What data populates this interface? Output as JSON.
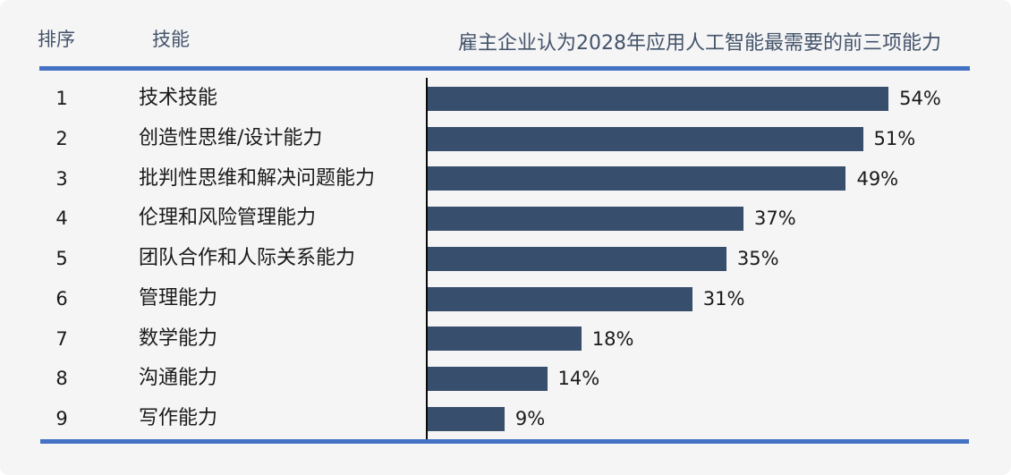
{
  "header": {
    "rank_label": "排序",
    "skill_label": "技能",
    "chart_title": "雇主企业认为2028年应用人工智能最需要的前三项能力"
  },
  "table": {
    "columns": [
      "排序",
      "技能"
    ],
    "rows": [
      {
        "rank": "1",
        "skill": "技术技能",
        "percent_label": "54%"
      },
      {
        "rank": "2",
        "skill": "创造性思维/设计能力",
        "percent_label": "51%"
      },
      {
        "rank": "3",
        "skill": "批判性思维和解决问题能力",
        "percent_label": "49%"
      },
      {
        "rank": "4",
        "skill": "伦理和风险管理能力",
        "percent_label": "37%"
      },
      {
        "rank": "5",
        "skill": "团队合作和人际关系能力",
        "percent_label": "35%"
      },
      {
        "rank": "6",
        "skill": "管理能力",
        "percent_label": "31%"
      },
      {
        "rank": "7",
        "skill": "数学能力",
        "percent_label": "18%"
      },
      {
        "rank": "8",
        "skill": "沟通能力",
        "percent_label": "14%"
      },
      {
        "rank": "9",
        "skill": "写作能力",
        "percent_label": "9%"
      }
    ]
  },
  "chart_data": {
    "type": "bar",
    "orientation": "horizontal",
    "title": "雇主企业认为2028年应用人工智能最需要的前三项能力",
    "categories": [
      "技术技能",
      "创造性思维/设计能力",
      "批判性思维和解决问题能力",
      "伦理和风险管理能力",
      "团队合作和人际关系能力",
      "管理能力",
      "数学能力",
      "沟通能力",
      "写作能力"
    ],
    "values": [
      54,
      51,
      49,
      37,
      35,
      31,
      18,
      14,
      9
    ],
    "value_suffix": "%",
    "xlabel": "",
    "ylabel": "",
    "xlim": [
      0,
      57
    ],
    "grid": false,
    "legend": "none",
    "data_labels": true
  },
  "colors": {
    "background": "#F5F5F6",
    "page": "#FFFFFF",
    "bar": "#384E6D",
    "accent_rule": "#4472C4",
    "header_text": "#44546A",
    "body_text": "#1A1A1A",
    "axis": "#0A0A0A"
  }
}
